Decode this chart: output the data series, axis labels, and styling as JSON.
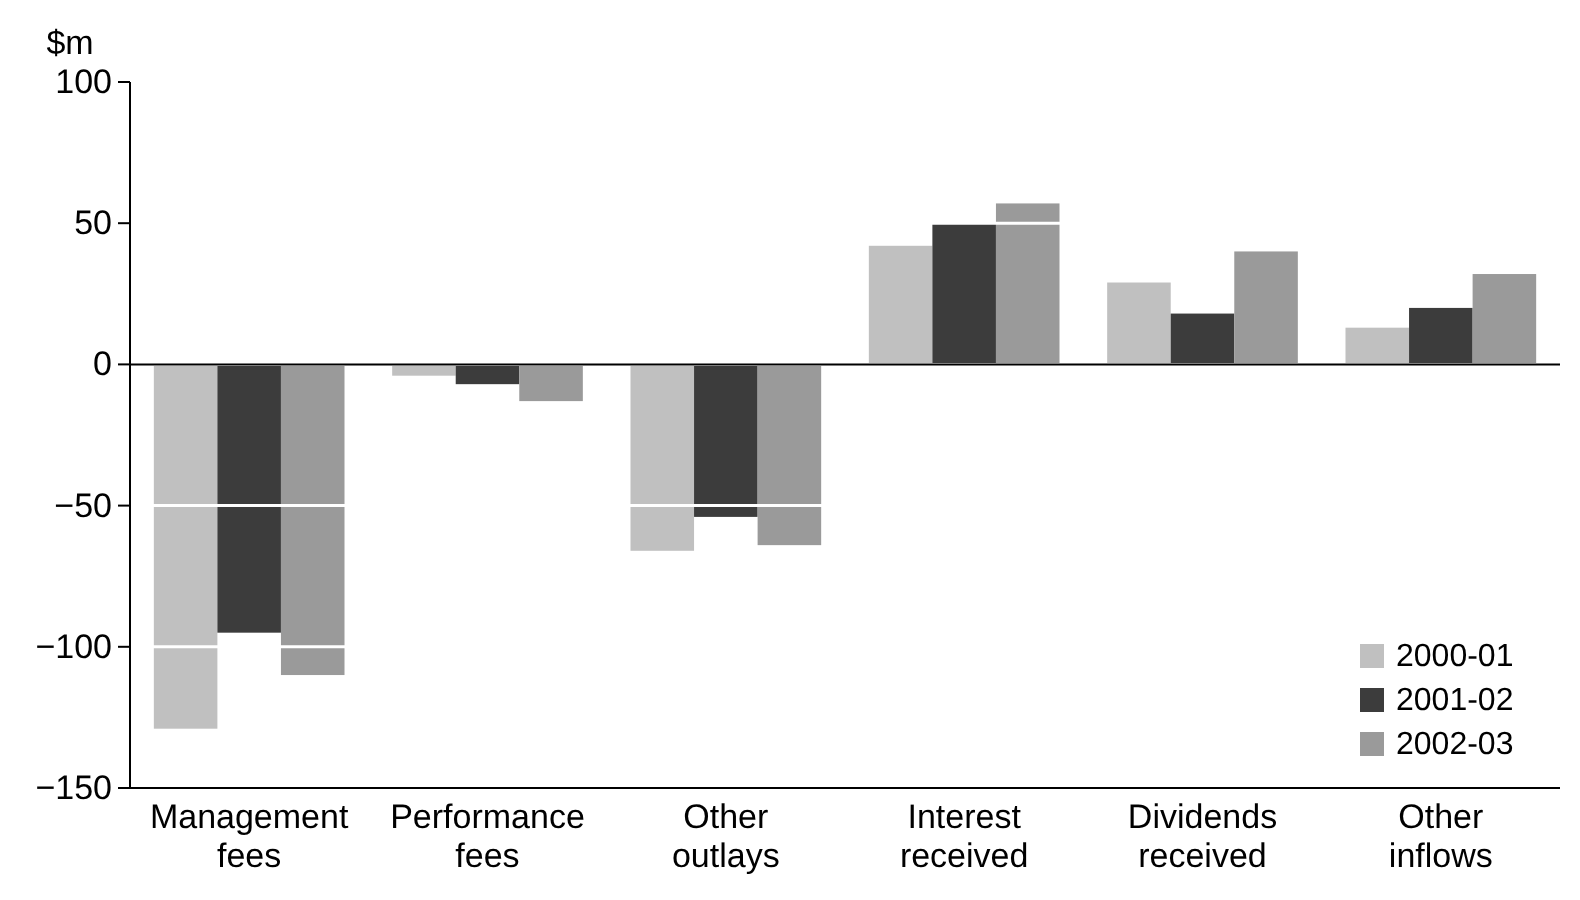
{
  "chart_data": {
    "type": "bar",
    "ylabel": "$m",
    "categories": [
      "Management fees",
      "Performance fees",
      "Other outlays",
      "Interest received",
      "Dividends received",
      "Other inflows"
    ],
    "series": [
      {
        "name": "2000-01",
        "color": "#c0c0c0",
        "values": [
          -129,
          -4,
          -66,
          42,
          29,
          13
        ]
      },
      {
        "name": "2001-02",
        "color": "#3c3c3c",
        "values": [
          -95,
          -7,
          -54,
          50,
          18,
          20
        ]
      },
      {
        "name": "2002-03",
        "color": "#9a9a9a",
        "values": [
          -110,
          -13,
          -64,
          57,
          40,
          32
        ]
      }
    ],
    "ylim": [
      -150,
      100
    ],
    "yticks": [
      -150,
      -100,
      -50,
      0,
      50,
      100
    ],
    "grid": "y",
    "legend": "bottom right"
  }
}
